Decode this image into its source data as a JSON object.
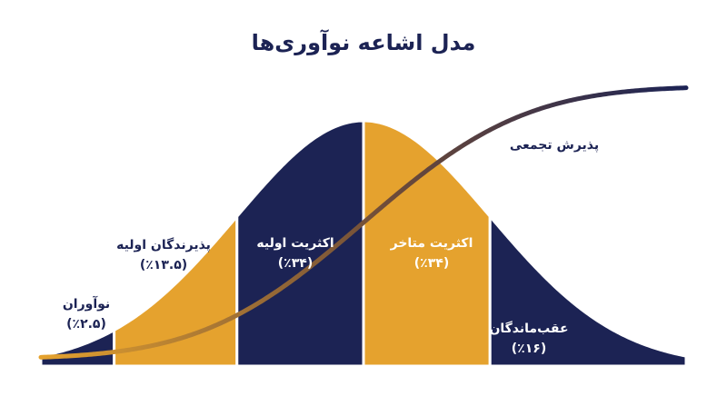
{
  "chart_data": {
    "type": "bell",
    "title": "مدل اشاعه نوآوری‌ها",
    "categories": [
      "نوآوران",
      "پذیرندگان اولیه",
      "اکثریت اولیه",
      "اکثریت متاخر",
      "عقب‌ماندگان"
    ],
    "values": [
      2.5,
      13.5,
      34,
      34,
      16
    ],
    "value_labels": [
      "(٪۲.۵)",
      "(٪۱۳.۵)",
      "(٪۳۴)",
      "(٪۳۴)",
      "(٪۱۶)"
    ],
    "colors": [
      "#1c2354",
      "#e5a22e",
      "#1c2354",
      "#e5a22e",
      "#1c2354"
    ],
    "cumulative_label": "پذیرش تجمعی"
  }
}
